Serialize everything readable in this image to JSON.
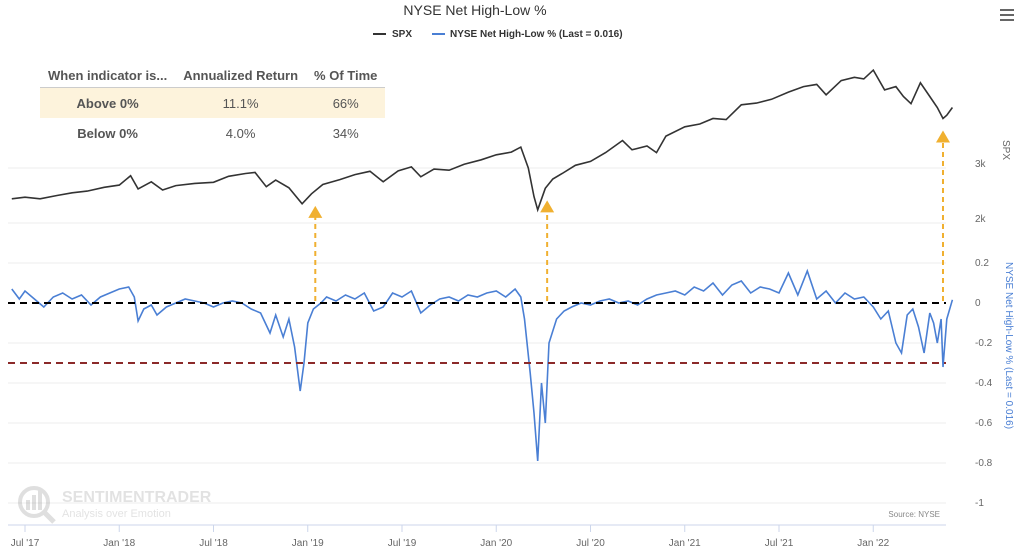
{
  "chart_data": {
    "type": "line",
    "title": "NYSE Net High-Low %",
    "legend": [
      "SPX",
      "NYSE Net High-Low % (Last = 0.016)"
    ],
    "legend_placement": "top-center",
    "source": "Source: NYSE",
    "x_ticks": [
      {
        "x": 2017.5,
        "label": "Jul '17"
      },
      {
        "x": 2018.0,
        "label": "Jan '18"
      },
      {
        "x": 2018.5,
        "label": "Jul '18"
      },
      {
        "x": 2019.0,
        "label": "Jan '19"
      },
      {
        "x": 2019.5,
        "label": "Jul '19"
      },
      {
        "x": 2020.0,
        "label": "Jan '20"
      },
      {
        "x": 2020.5,
        "label": "Jul '20"
      },
      {
        "x": 2021.0,
        "label": "Jan '21"
      },
      {
        "x": 2021.5,
        "label": "Jul '21"
      },
      {
        "x": 2022.0,
        "label": "Jan '22"
      }
    ],
    "xlim": [
      2017.43,
      2022.44
    ],
    "spx_axis": {
      "label": "SPX",
      "ticks": [
        {
          "v": 3000,
          "label": "3k"
        },
        {
          "v": 2000,
          "label": "2k"
        }
      ]
    },
    "nhl_axis": {
      "label": "NYSE Net High-Low % (Last = 0.016)",
      "ylim": [
        -1,
        0.2
      ],
      "ticks": [
        {
          "v": 0.2,
          "label": "0.2"
        },
        {
          "v": 0,
          "label": "0"
        },
        {
          "v": -0.2,
          "label": "-0.2"
        },
        {
          "v": -0.4,
          "label": "-0.4"
        },
        {
          "v": -0.6,
          "label": "-0.6"
        },
        {
          "v": -0.8,
          "label": "-0.8"
        },
        {
          "v": -1,
          "label": "-1"
        }
      ]
    },
    "reference_lines": [
      {
        "v": 0,
        "color": "#000000"
      },
      {
        "v": -0.3,
        "color": "#8b2a2a"
      }
    ],
    "signal_arrows": [
      2019.04,
      2020.27,
      2022.37
    ],
    "colors": {
      "spx": "#333333",
      "nhl": "#4a7fd4",
      "arrow": "#f0b030"
    },
    "series": [
      {
        "name": "SPX",
        "points": [
          [
            2017.43,
            2440
          ],
          [
            2017.5,
            2470
          ],
          [
            2017.58,
            2440
          ],
          [
            2017.67,
            2500
          ],
          [
            2017.75,
            2550
          ],
          [
            2017.83,
            2580
          ],
          [
            2017.92,
            2650
          ],
          [
            2018.0,
            2690
          ],
          [
            2018.06,
            2860
          ],
          [
            2018.1,
            2620
          ],
          [
            2018.17,
            2750
          ],
          [
            2018.23,
            2600
          ],
          [
            2018.3,
            2680
          ],
          [
            2018.4,
            2720
          ],
          [
            2018.5,
            2740
          ],
          [
            2018.58,
            2850
          ],
          [
            2018.67,
            2900
          ],
          [
            2018.72,
            2920
          ],
          [
            2018.78,
            2660
          ],
          [
            2018.83,
            2780
          ],
          [
            2018.9,
            2640
          ],
          [
            2018.97,
            2350
          ],
          [
            2019.02,
            2530
          ],
          [
            2019.08,
            2700
          ],
          [
            2019.17,
            2790
          ],
          [
            2019.25,
            2880
          ],
          [
            2019.33,
            2940
          ],
          [
            2019.4,
            2750
          ],
          [
            2019.48,
            2950
          ],
          [
            2019.55,
            3020
          ],
          [
            2019.6,
            2840
          ],
          [
            2019.67,
            2980
          ],
          [
            2019.75,
            2960
          ],
          [
            2019.83,
            3070
          ],
          [
            2019.92,
            3150
          ],
          [
            2020.0,
            3240
          ],
          [
            2020.08,
            3290
          ],
          [
            2020.13,
            3380
          ],
          [
            2020.17,
            3000
          ],
          [
            2020.2,
            2480
          ],
          [
            2020.22,
            2240
          ],
          [
            2020.26,
            2630
          ],
          [
            2020.3,
            2800
          ],
          [
            2020.35,
            2900
          ],
          [
            2020.42,
            3050
          ],
          [
            2020.5,
            3120
          ],
          [
            2020.58,
            3280
          ],
          [
            2020.67,
            3500
          ],
          [
            2020.72,
            3330
          ],
          [
            2020.8,
            3400
          ],
          [
            2020.85,
            3280
          ],
          [
            2020.9,
            3580
          ],
          [
            2021.0,
            3750
          ],
          [
            2021.08,
            3800
          ],
          [
            2021.15,
            3900
          ],
          [
            2021.22,
            3880
          ],
          [
            2021.3,
            4150
          ],
          [
            2021.38,
            4180
          ],
          [
            2021.46,
            4250
          ],
          [
            2021.55,
            4380
          ],
          [
            2021.63,
            4480
          ],
          [
            2021.7,
            4520
          ],
          [
            2021.75,
            4330
          ],
          [
            2021.83,
            4590
          ],
          [
            2021.9,
            4650
          ],
          [
            2021.95,
            4620
          ],
          [
            2022.0,
            4780
          ],
          [
            2022.06,
            4420
          ],
          [
            2022.12,
            4480
          ],
          [
            2022.16,
            4300
          ],
          [
            2022.2,
            4170
          ],
          [
            2022.25,
            4550
          ],
          [
            2022.3,
            4300
          ],
          [
            2022.34,
            4100
          ],
          [
            2022.37,
            3900
          ],
          [
            2022.39,
            3960
          ],
          [
            2022.42,
            4100
          ]
        ]
      },
      {
        "name": "NYSE Net High-Low %",
        "points": [
          [
            2017.43,
            0.07
          ],
          [
            2017.47,
            0.02
          ],
          [
            2017.5,
            0.06
          ],
          [
            2017.55,
            0.02
          ],
          [
            2017.6,
            -0.02
          ],
          [
            2017.65,
            0.03
          ],
          [
            2017.7,
            0.05
          ],
          [
            2017.75,
            0.02
          ],
          [
            2017.8,
            0.04
          ],
          [
            2017.85,
            -0.01
          ],
          [
            2017.9,
            0.03
          ],
          [
            2017.95,
            0.05
          ],
          [
            2018.0,
            0.07
          ],
          [
            2018.05,
            0.08
          ],
          [
            2018.08,
            0.03
          ],
          [
            2018.1,
            -0.09
          ],
          [
            2018.13,
            -0.03
          ],
          [
            2018.17,
            -0.01
          ],
          [
            2018.2,
            -0.06
          ],
          [
            2018.25,
            -0.02
          ],
          [
            2018.3,
            0.0
          ],
          [
            2018.35,
            0.02
          ],
          [
            2018.4,
            0.01
          ],
          [
            2018.45,
            0.0
          ],
          [
            2018.5,
            -0.02
          ],
          [
            2018.55,
            0.0
          ],
          [
            2018.6,
            0.01
          ],
          [
            2018.65,
            0.0
          ],
          [
            2018.7,
            -0.03
          ],
          [
            2018.75,
            -0.05
          ],
          [
            2018.8,
            -0.15
          ],
          [
            2018.83,
            -0.06
          ],
          [
            2018.87,
            -0.17
          ],
          [
            2018.9,
            -0.08
          ],
          [
            2018.93,
            -0.22
          ],
          [
            2018.96,
            -0.44
          ],
          [
            2018.98,
            -0.3
          ],
          [
            2019.0,
            -0.1
          ],
          [
            2019.03,
            -0.03
          ],
          [
            2019.07,
            0.0
          ],
          [
            2019.1,
            0.03
          ],
          [
            2019.15,
            0.01
          ],
          [
            2019.2,
            0.04
          ],
          [
            2019.25,
            0.02
          ],
          [
            2019.3,
            0.05
          ],
          [
            2019.35,
            -0.04
          ],
          [
            2019.4,
            -0.02
          ],
          [
            2019.45,
            0.05
          ],
          [
            2019.5,
            0.03
          ],
          [
            2019.55,
            0.06
          ],
          [
            2019.6,
            -0.05
          ],
          [
            2019.65,
            -0.01
          ],
          [
            2019.7,
            0.02
          ],
          [
            2019.75,
            0.03
          ],
          [
            2019.8,
            0.01
          ],
          [
            2019.85,
            0.04
          ],
          [
            2019.9,
            0.03
          ],
          [
            2019.95,
            0.05
          ],
          [
            2020.0,
            0.06
          ],
          [
            2020.05,
            0.03
          ],
          [
            2020.1,
            0.07
          ],
          [
            2020.13,
            0.03
          ],
          [
            2020.15,
            -0.08
          ],
          [
            2020.18,
            -0.35
          ],
          [
            2020.2,
            -0.55
          ],
          [
            2020.22,
            -0.79
          ],
          [
            2020.24,
            -0.4
          ],
          [
            2020.26,
            -0.6
          ],
          [
            2020.28,
            -0.2
          ],
          [
            2020.32,
            -0.08
          ],
          [
            2020.36,
            -0.04
          ],
          [
            2020.4,
            -0.02
          ],
          [
            2020.45,
            0.0
          ],
          [
            2020.5,
            -0.01
          ],
          [
            2020.55,
            0.01
          ],
          [
            2020.6,
            0.02
          ],
          [
            2020.65,
            0.0
          ],
          [
            2020.7,
            0.01
          ],
          [
            2020.75,
            -0.01
          ],
          [
            2020.8,
            0.02
          ],
          [
            2020.85,
            0.04
          ],
          [
            2020.9,
            0.05
          ],
          [
            2020.95,
            0.06
          ],
          [
            2021.0,
            0.04
          ],
          [
            2021.05,
            0.08
          ],
          [
            2021.1,
            0.06
          ],
          [
            2021.15,
            0.1
          ],
          [
            2021.2,
            0.04
          ],
          [
            2021.25,
            0.09
          ],
          [
            2021.3,
            0.11
          ],
          [
            2021.35,
            0.05
          ],
          [
            2021.4,
            0.08
          ],
          [
            2021.45,
            0.07
          ],
          [
            2021.5,
            0.05
          ],
          [
            2021.55,
            0.15
          ],
          [
            2021.6,
            0.04
          ],
          [
            2021.65,
            0.16
          ],
          [
            2021.7,
            0.02
          ],
          [
            2021.75,
            0.06
          ],
          [
            2021.8,
            0.0
          ],
          [
            2021.85,
            0.05
          ],
          [
            2021.9,
            0.02
          ],
          [
            2021.95,
            0.03
          ],
          [
            2022.0,
            -0.02
          ],
          [
            2022.04,
            -0.08
          ],
          [
            2022.08,
            -0.04
          ],
          [
            2022.12,
            -0.2
          ],
          [
            2022.15,
            -0.25
          ],
          [
            2022.18,
            -0.06
          ],
          [
            2022.21,
            -0.03
          ],
          [
            2022.24,
            -0.12
          ],
          [
            2022.27,
            -0.25
          ],
          [
            2022.3,
            -0.05
          ],
          [
            2022.32,
            -0.1
          ],
          [
            2022.34,
            -0.2
          ],
          [
            2022.36,
            -0.08
          ],
          [
            2022.37,
            -0.32
          ],
          [
            2022.39,
            -0.08
          ],
          [
            2022.42,
            0.016
          ]
        ]
      }
    ]
  },
  "stats_table": {
    "headers": [
      "When indicator is...",
      "Annualized Return",
      "% Of Time"
    ],
    "rows": [
      {
        "label": "Above 0%",
        "return": "11.1%",
        "time": "66%"
      },
      {
        "label": "Below 0%",
        "return": "4.0%",
        "time": "34%"
      }
    ]
  },
  "watermark": {
    "name": "SENTIMENTRADER",
    "tagline": "Analysis over Emotion"
  }
}
